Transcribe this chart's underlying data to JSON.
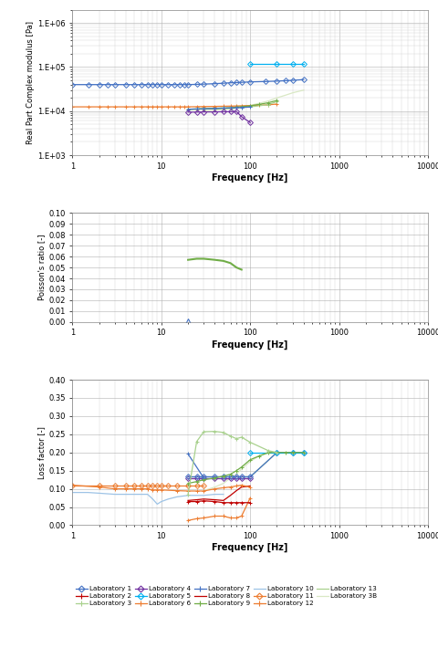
{
  "subplot1": {
    "ylabel": "Real Part Complex modulus [Pa]",
    "xlabel": "Frequency [Hz]",
    "ylim": [
      1000,
      2000000
    ],
    "xlim": [
      1,
      10000
    ],
    "ytick_labels": [
      "1.E+03",
      "1.E+04",
      "1.E+05",
      "1.E+06"
    ],
    "ytick_vals": [
      1000,
      10000,
      100000,
      1000000
    ],
    "series": {
      "lab1": {
        "x": [
          1,
          1.5,
          2,
          2.5,
          3,
          4,
          5,
          6,
          7,
          8,
          9,
          10,
          12,
          14,
          16,
          18,
          20,
          25,
          30,
          40,
          50,
          60,
          70,
          80,
          100,
          150,
          200,
          250,
          300,
          400
        ],
        "y": [
          40000,
          40000,
          40000,
          40000,
          40000,
          40000,
          40000,
          40000,
          40000,
          40000,
          40000,
          40000,
          40000,
          40000,
          40000,
          40000,
          40000,
          40500,
          41000,
          42000,
          43000,
          44000,
          44500,
          45000,
          46000,
          47000,
          48000,
          49000,
          50000,
          52000
        ],
        "color": "#4472c4",
        "marker": "D",
        "ms": 3
      },
      "lab2": {
        "x": [
          1,
          1.5,
          2,
          2.5,
          3,
          4,
          5,
          6,
          7,
          8,
          9,
          10,
          12,
          14,
          16,
          18,
          20,
          25,
          30,
          40,
          50,
          60,
          70,
          80,
          100,
          125,
          160,
          200
        ],
        "y": [
          12500,
          12500,
          12500,
          12500,
          12500,
          12500,
          12500,
          12500,
          12500,
          12500,
          12500,
          12500,
          12500,
          12500,
          12500,
          12500,
          12500,
          12600,
          12700,
          12800,
          12900,
          13000,
          13100,
          13200,
          13400,
          13600,
          13900,
          14500
        ],
        "color": "#ed7d31",
        "marker": "+",
        "ms": 4
      },
      "lab5": {
        "x": [
          100,
          200,
          300,
          400
        ],
        "y": [
          120000,
          120000,
          120000,
          120000
        ],
        "color": "#00b0f0",
        "marker": "D",
        "ms": 3
      },
      "lab4": {
        "x": [
          20,
          25,
          30,
          40,
          50,
          60,
          70,
          80,
          100
        ],
        "y": [
          9500,
          9500,
          9600,
          9600,
          9700,
          9700,
          9800,
          7500,
          5500
        ],
        "color": "#7030a0",
        "marker": "D",
        "ms": 3
      },
      "lab7": {
        "x": [
          20,
          25,
          30,
          40,
          50,
          60,
          70,
          80,
          100
        ],
        "y": [
          11000,
          11200,
          11300,
          11500,
          11700,
          11800,
          12000,
          12100,
          12400
        ],
        "color": "#4472c4",
        "marker": "+",
        "ms": 4
      },
      "lab9": {
        "x": [
          20,
          25,
          30,
          40,
          50,
          60,
          70,
          80,
          100,
          125,
          160,
          200
        ],
        "y": [
          11000,
          11200,
          11400,
          11600,
          11800,
          12000,
          12300,
          12600,
          13200,
          14200,
          15500,
          17500
        ],
        "color": "#70ad47",
        "marker": "+",
        "ms": 4
      },
      "lab3": {
        "x": [
          20,
          25,
          30,
          40,
          50,
          60,
          70,
          80,
          100,
          160,
          200
        ],
        "y": [
          10800,
          11000,
          11100,
          11200,
          11300,
          11500,
          11700,
          12000,
          12500,
          14000,
          16500
        ],
        "color": "#a9d18e",
        "marker": "+",
        "ms": 4
      },
      "lab3b": {
        "x": [
          30,
          40,
          50,
          60,
          70,
          80,
          100,
          125,
          160,
          200,
          250,
          300,
          400
        ],
        "y": [
          10000,
          10500,
          11000,
          11500,
          12000,
          12500,
          13500,
          15000,
          17000,
          20000,
          23000,
          26000,
          30000
        ],
        "color": "#d9e8c4",
        "marker": null,
        "ms": 0
      }
    }
  },
  "subplot2": {
    "ylabel": "Poisson's ratio [-]",
    "xlabel": "Frequency [Hz]",
    "ylim": [
      0.0,
      0.1
    ],
    "xlim": [
      1,
      10000
    ],
    "yticks": [
      0.0,
      0.01,
      0.02,
      0.03,
      0.04,
      0.05,
      0.06,
      0.07,
      0.08,
      0.09,
      0.1
    ],
    "series": {
      "lab7": {
        "x": [
          20
        ],
        "y": [
          0.001
        ],
        "color": "#4472c4",
        "marker": "^",
        "ms": 5
      },
      "lab9": {
        "x": [
          20,
          25,
          30,
          40,
          50,
          60,
          70,
          80
        ],
        "y": [
          0.057,
          0.058,
          0.058,
          0.057,
          0.056,
          0.054,
          0.05,
          0.048
        ],
        "color": "#70ad47",
        "marker": null,
        "ms": 0
      }
    }
  },
  "subplot3": {
    "ylabel": "Loss factor [-]",
    "xlabel": "Frequency [Hz]",
    "ylim": [
      0.0,
      0.4
    ],
    "xlim": [
      1,
      10000
    ],
    "yticks": [
      0.0,
      0.05,
      0.1,
      0.15,
      0.2,
      0.25,
      0.3,
      0.35,
      0.4
    ],
    "series": {
      "lab10": {
        "x": [
          1,
          1.5,
          2,
          3,
          4,
          5,
          6,
          7,
          8,
          9,
          10,
          12,
          15,
          20,
          25,
          30,
          40,
          50
        ],
        "y": [
          0.09,
          0.09,
          0.088,
          0.085,
          0.085,
          0.085,
          0.085,
          0.085,
          0.072,
          0.058,
          0.065,
          0.072,
          0.078,
          0.082,
          0.082,
          0.082,
          0.085,
          0.085
        ],
        "color": "#9dc3e6",
        "marker": null,
        "ms": 0
      },
      "lab11": {
        "x": [
          1,
          2,
          3,
          4,
          5,
          6,
          7,
          8,
          9,
          10,
          12,
          15,
          20,
          25,
          30
        ],
        "y": [
          0.11,
          0.11,
          0.11,
          0.11,
          0.11,
          0.11,
          0.11,
          0.11,
          0.11,
          0.11,
          0.11,
          0.11,
          0.11,
          0.11,
          0.11
        ],
        "color": "#ed7d31",
        "marker": "D",
        "ms": 3
      },
      "lab6": {
        "x": [
          1,
          2,
          3,
          4,
          5,
          6,
          7,
          8,
          9,
          10,
          15,
          20,
          25,
          30,
          40,
          50,
          60,
          70,
          80,
          100
        ],
        "y": [
          0.11,
          0.105,
          0.1,
          0.1,
          0.1,
          0.1,
          0.1,
          0.097,
          0.097,
          0.097,
          0.095,
          0.094,
          0.094,
          0.094,
          0.1,
          0.103,
          0.105,
          0.108,
          0.11,
          0.105
        ],
        "color": "#ed7d31",
        "marker": "+",
        "ms": 4
      },
      "lab8": {
        "x": [
          20,
          25,
          30,
          40,
          50,
          60,
          70,
          80,
          100
        ],
        "y": [
          0.068,
          0.07,
          0.072,
          0.07,
          0.068,
          0.082,
          0.095,
          0.105,
          0.108
        ],
        "color": "#c00000",
        "marker": null,
        "ms": 0
      },
      "lab2": {
        "x": [
          20,
          25,
          30,
          40,
          50,
          60,
          70,
          80,
          100
        ],
        "y": [
          0.065,
          0.065,
          0.067,
          0.065,
          0.062,
          0.062,
          0.062,
          0.062,
          0.062
        ],
        "color": "#c00000",
        "marker": "+",
        "ms": 4
      },
      "lab4": {
        "x": [
          20,
          25,
          30,
          40,
          50,
          60,
          70,
          80,
          100
        ],
        "y": [
          0.13,
          0.13,
          0.13,
          0.13,
          0.13,
          0.13,
          0.13,
          0.13,
          0.13
        ],
        "color": "#7030a0",
        "marker": "D",
        "ms": 3
      },
      "lab7": {
        "x": [
          20,
          30
        ],
        "y": [
          0.196,
          0.13
        ],
        "color": "#4472c4",
        "marker": "+",
        "ms": 4
      },
      "lab1": {
        "x": [
          20,
          25,
          30,
          40,
          50,
          60,
          70,
          80,
          100,
          200,
          300,
          400
        ],
        "y": [
          0.133,
          0.133,
          0.133,
          0.133,
          0.133,
          0.133,
          0.133,
          0.133,
          0.133,
          0.2,
          0.2,
          0.2
        ],
        "color": "#4472c4",
        "marker": "D",
        "ms": 3
      },
      "lab5": {
        "x": [
          100,
          200,
          300,
          400
        ],
        "y": [
          0.2,
          0.2,
          0.2,
          0.2
        ],
        "color": "#00b0f0",
        "marker": "D",
        "ms": 3
      },
      "lab12": {
        "x": [
          20,
          25,
          30,
          40,
          50,
          60,
          70,
          80,
          100
        ],
        "y": [
          0.013,
          0.018,
          0.02,
          0.025,
          0.025,
          0.02,
          0.02,
          0.025,
          0.075
        ],
        "color": "#ed7d31",
        "marker": "+",
        "ms": 4
      },
      "lab3b": {
        "x": [
          30,
          40,
          50,
          60,
          70,
          80,
          100,
          125,
          160,
          200,
          250,
          300,
          400
        ],
        "y": [
          0.095,
          0.105,
          0.115,
          0.13,
          0.14,
          0.155,
          0.175,
          0.19,
          0.198,
          0.2,
          0.2,
          0.2,
          0.2
        ],
        "color": "#d9e8c4",
        "marker": null,
        "ms": 0
      },
      "lab9": {
        "x": [
          20,
          25,
          30,
          40,
          50,
          60,
          70,
          80,
          100,
          125,
          160,
          200,
          250,
          300,
          400
        ],
        "y": [
          0.115,
          0.12,
          0.125,
          0.13,
          0.135,
          0.14,
          0.15,
          0.16,
          0.18,
          0.19,
          0.2,
          0.2,
          0.2,
          0.2,
          0.2
        ],
        "color": "#70ad47",
        "marker": "+",
        "ms": 4
      },
      "lab3": {
        "x": [
          20,
          25,
          30,
          40,
          50,
          60,
          70,
          80,
          100,
          160,
          200
        ],
        "y": [
          0.085,
          0.23,
          0.257,
          0.258,
          0.255,
          0.245,
          0.238,
          0.242,
          0.228,
          0.205,
          0.2
        ],
        "color": "#a9d18e",
        "marker": "+",
        "ms": 4
      },
      "lab13": {
        "x": [
          20,
          25,
          30,
          40,
          50,
          60,
          70,
          80,
          100,
          200,
          300,
          400
        ],
        "y": [
          0.133,
          0.133,
          0.133,
          0.133,
          0.133,
          0.133,
          0.133,
          0.133,
          0.133,
          0.2,
          0.2,
          0.2
        ],
        "color": "#a9d18e",
        "marker": null,
        "ms": 0
      }
    }
  },
  "legend_entries": [
    {
      "label": "Laboratory 1",
      "color": "#4472c4",
      "marker": "D"
    },
    {
      "label": "Laboratory 2",
      "color": "#c00000",
      "marker": "+"
    },
    {
      "label": "Laboratory 3",
      "color": "#a9d18e",
      "marker": "+"
    },
    {
      "label": "Laboratory 4",
      "color": "#7030a0",
      "marker": "D"
    },
    {
      "label": "Laboratory 5",
      "color": "#00b0f0",
      "marker": "D"
    },
    {
      "label": "Laboratory 6",
      "color": "#ed7d31",
      "marker": "+"
    },
    {
      "label": "Laboratory 7",
      "color": "#4472c4",
      "marker": "+"
    },
    {
      "label": "Laboratory 8",
      "color": "#c00000",
      "marker": null
    },
    {
      "label": "Laboratory 9",
      "color": "#70ad47",
      "marker": "+"
    },
    {
      "label": "Laboratory 10",
      "color": "#9dc3e6",
      "marker": null
    },
    {
      "label": "Laboratory 11",
      "color": "#ed7d31",
      "marker": "D"
    },
    {
      "label": "Laboratory 12",
      "color": "#ed7d31",
      "marker": "+"
    },
    {
      "label": "Laboratory 13",
      "color": "#a9d18e",
      "marker": null
    },
    {
      "label": "Laboratory 3B",
      "color": "#d9e8c4",
      "marker": null
    }
  ]
}
